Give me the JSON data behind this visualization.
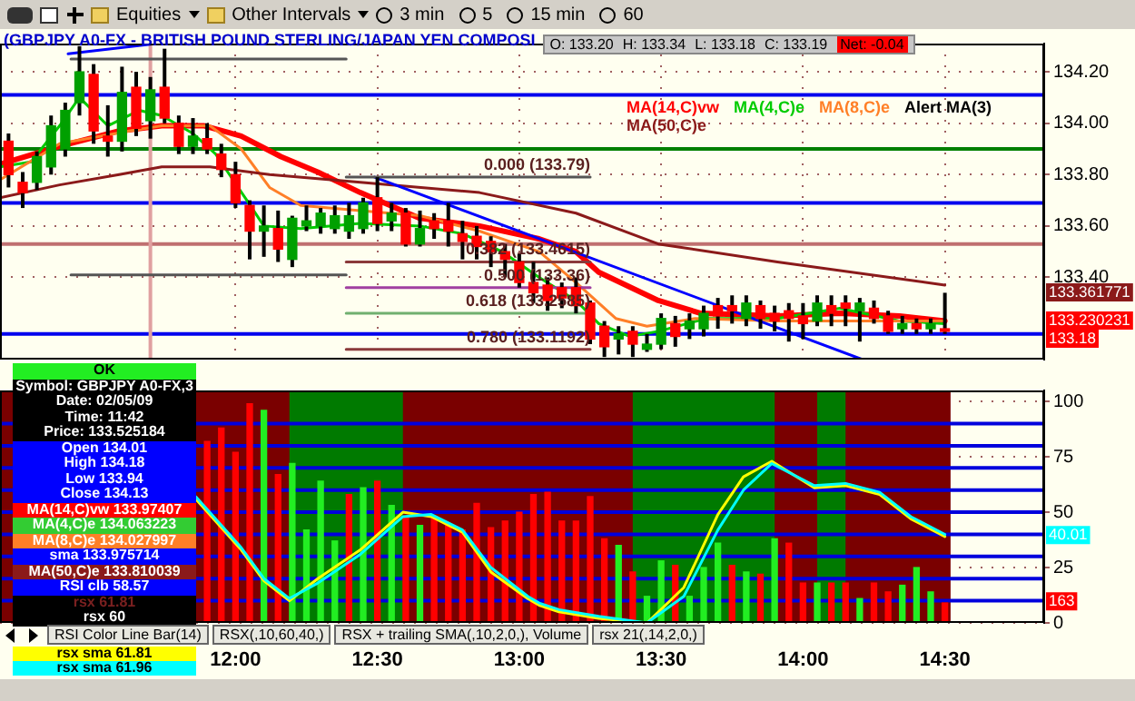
{
  "chart_data": [
    {
      "type": "candlestick",
      "title": "(GBPJPY A0-FX - BRITISH POUND STERLING/JAPAN YEN COMPOSI",
      "x": [
        11.2,
        11.25,
        11.3,
        11.35,
        11.4,
        11.45,
        11.5,
        11.55,
        11.6,
        11.65,
        11.7,
        11.75,
        11.8,
        11.85,
        11.9,
        11.95,
        12,
        12.05,
        12.1,
        12.15,
        12.2,
        12.25,
        12.3,
        12.35,
        12.4,
        12.45,
        12.5,
        12.55,
        12.6,
        12.65,
        12.7,
        12.75,
        12.8,
        12.85,
        12.9,
        12.95,
        13,
        13.05,
        13.1,
        13.15,
        13.2,
        13.25,
        13.3,
        13.35,
        13.4,
        13.45,
        13.5,
        13.55,
        13.6,
        13.65,
        13.7,
        13.75,
        13.8,
        13.85,
        13.9,
        13.95,
        14,
        14.05,
        14.1,
        14.15,
        14.2,
        14.25,
        14.3,
        14.35,
        14.4,
        14.45,
        14.5
      ],
      "ohlc": [
        [
          133.93,
          133.96,
          133.75,
          133.8
        ],
        [
          133.77,
          133.81,
          133.67,
          133.73
        ],
        [
          133.77,
          133.89,
          133.74,
          133.87
        ],
        [
          133.83,
          134.03,
          133.8,
          133.99
        ],
        [
          133.9,
          134.08,
          133.87,
          134.05
        ],
        [
          134.08,
          134.3,
          134.03,
          134.2
        ],
        [
          134.19,
          134.23,
          133.92,
          133.97
        ],
        [
          133.95,
          134.07,
          133.87,
          133.93
        ],
        [
          133.93,
          134.22,
          133.89,
          134.12
        ],
        [
          134.14,
          134.2,
          133.95,
          133.98
        ],
        [
          134.01,
          134.18,
          133.94,
          134.13
        ],
        [
          134.14,
          134.29,
          134.0,
          134.02
        ],
        [
          134.0,
          134.03,
          133.88,
          133.91
        ],
        [
          133.91,
          134.02,
          133.88,
          133.95
        ],
        [
          133.94,
          134.0,
          133.88,
          133.9
        ],
        [
          133.88,
          133.92,
          133.79,
          133.82
        ],
        [
          133.8,
          133.85,
          133.67,
          133.69
        ],
        [
          133.68,
          133.7,
          133.47,
          133.58
        ],
        [
          133.58,
          133.68,
          133.48,
          133.6
        ],
        [
          133.59,
          133.66,
          133.46,
          133.51
        ],
        [
          133.47,
          133.64,
          133.44,
          133.63
        ],
        [
          133.6,
          133.68,
          133.58,
          133.62
        ],
        [
          133.6,
          133.67,
          133.57,
          133.65
        ],
        [
          133.59,
          133.68,
          133.57,
          133.64
        ],
        [
          133.58,
          133.69,
          133.55,
          133.64
        ],
        [
          133.59,
          133.71,
          133.57,
          133.69
        ],
        [
          133.71,
          133.79,
          133.58,
          133.61
        ],
        [
          133.62,
          133.69,
          133.58,
          133.65
        ],
        [
          133.65,
          133.67,
          133.52,
          133.53
        ],
        [
          133.53,
          133.66,
          133.52,
          133.59
        ],
        [
          133.62,
          133.65,
          133.55,
          133.59
        ],
        [
          133.62,
          133.69,
          133.52,
          133.58
        ],
        [
          133.57,
          133.62,
          133.47,
          133.54
        ],
        [
          133.56,
          133.6,
          133.47,
          133.52
        ],
        [
          133.54,
          133.56,
          133.44,
          133.5
        ],
        [
          133.5,
          133.53,
          133.4,
          133.47
        ],
        [
          133.46,
          133.49,
          133.36,
          133.38
        ],
        [
          133.38,
          133.46,
          133.3,
          133.34
        ],
        [
          133.37,
          133.4,
          133.27,
          133.31
        ],
        [
          133.36,
          133.38,
          133.28,
          133.32
        ],
        [
          133.36,
          133.4,
          133.26,
          133.29
        ],
        [
          133.3,
          133.31,
          133.14,
          133.16
        ],
        [
          133.21,
          133.23,
          133.09,
          133.13
        ],
        [
          133.16,
          133.21,
          133.1,
          133.18
        ],
        [
          133.19,
          133.21,
          133.09,
          133.14
        ],
        [
          133.12,
          133.18,
          133.11,
          133.14
        ],
        [
          133.14,
          133.26,
          133.12,
          133.24
        ],
        [
          133.22,
          133.25,
          133.13,
          133.17
        ],
        [
          133.2,
          133.26,
          133.16,
          133.23
        ],
        [
          133.2,
          133.29,
          133.17,
          133.26
        ],
        [
          133.29,
          133.32,
          133.2,
          133.25
        ],
        [
          133.29,
          133.33,
          133.22,
          133.27
        ],
        [
          133.24,
          133.33,
          133.21,
          133.3
        ],
        [
          133.29,
          133.31,
          133.2,
          133.24
        ],
        [
          133.26,
          133.29,
          133.19,
          133.23
        ],
        [
          133.27,
          133.3,
          133.15,
          133.24
        ],
        [
          133.25,
          133.3,
          133.16,
          133.22
        ],
        [
          133.23,
          133.33,
          133.21,
          133.3
        ],
        [
          133.29,
          133.33,
          133.21,
          133.26
        ],
        [
          133.3,
          133.33,
          133.21,
          133.28
        ],
        [
          133.27,
          133.32,
          133.15,
          133.3
        ],
        [
          133.28,
          133.31,
          133.22,
          133.24
        ],
        [
          133.25,
          133.27,
          133.18,
          133.19
        ],
        [
          133.2,
          133.25,
          133.18,
          133.22
        ],
        [
          133.22,
          133.24,
          133.18,
          133.2
        ],
        [
          133.2,
          133.24,
          133.18,
          133.22
        ],
        [
          133.2,
          133.34,
          133.18,
          133.19
        ]
      ],
      "colors": [
        "#ff0000",
        "#ff0000",
        "#00a000",
        "#00a000",
        "#00a000",
        "#00a000",
        "#ff0000",
        "#ff0000",
        "#00a000",
        "#ff0000",
        "#00a000",
        "#ff0000",
        "#ff0000",
        "#00a000",
        "#ff0000",
        "#ff0000",
        "#ff0000",
        "#ff0000",
        "#00a000",
        "#ff0000",
        "#00a000",
        "#00a000",
        "#00a000",
        "#00a000",
        "#00a000",
        "#00a000",
        "#ff0000",
        "#00a000",
        "#ff0000",
        "#00a000",
        "#ff0000",
        "#ff0000",
        "#ff0000",
        "#ff0000",
        "#ff0000",
        "#ff0000",
        "#ff0000",
        "#ff0000",
        "#ff0000",
        "#ff0000",
        "#ff0000",
        "#ff0000",
        "#ff0000",
        "#00a000",
        "#ff0000",
        "#00a000",
        "#00a000",
        "#ff0000",
        "#00a000",
        "#00a000",
        "#ff0000",
        "#ff0000",
        "#00a000",
        "#ff0000",
        "#ff0000",
        "#ff0000",
        "#ff0000",
        "#00a000",
        "#ff0000",
        "#ff0000",
        "#00a000",
        "#ff0000",
        "#ff0000",
        "#00a000",
        "#ff0000",
        "#00a000",
        "#ff0000"
      ],
      "series": [
        {
          "type": "line",
          "name": "MA(14,C)vw",
          "color": "#ff0000",
          "x": [
            11.17,
            11.38,
            11.59,
            11.74,
            11.89,
            12.02,
            12.16,
            12.29,
            12.44,
            12.65,
            12.86,
            13.07,
            13.2,
            13.28,
            13.49,
            13.64,
            13.91,
            14.13,
            14.34,
            14.5
          ],
          "values": [
            133.84,
            133.91,
            133.97,
            133.99,
            133.99,
            133.95,
            133.87,
            133.81,
            133.73,
            133.63,
            133.6,
            133.55,
            133.5,
            133.42,
            133.31,
            133.26,
            133.25,
            133.26,
            133.25,
            133.23
          ]
        },
        {
          "type": "line",
          "name": "MA(4,C)e",
          "color": "#00cc00",
          "x": [
            11.17,
            11.28,
            11.38,
            11.45,
            11.55,
            11.66,
            11.74,
            11.85,
            11.93,
            12.04,
            12.1,
            12.23,
            12.44,
            12.65,
            12.8,
            12.94,
            13.07,
            13.2,
            13.28,
            13.39,
            13.49,
            13.66,
            13.91,
            14.13,
            14.34,
            14.5
          ],
          "values": [
            133.83,
            133.85,
            133.99,
            134.1,
            133.99,
            134.05,
            134.03,
            133.96,
            133.88,
            133.7,
            133.6,
            133.59,
            133.61,
            133.6,
            133.57,
            133.5,
            133.4,
            133.31,
            133.22,
            133.17,
            133.19,
            133.24,
            133.24,
            133.28,
            133.23,
            133.22
          ]
        },
        {
          "type": "line",
          "name": "MA(8,C)e",
          "color": "#ff7f27",
          "x": [
            11.17,
            11.38,
            11.625,
            11.74,
            11.91,
            12.02,
            12.12,
            12.23,
            12.44,
            12.65,
            12.86,
            13.07,
            13.2,
            13.34,
            13.45,
            13.62,
            13.91,
            14.5
          ],
          "values": [
            133.78,
            133.92,
            133.97,
            133.99,
            133.99,
            133.9,
            133.75,
            133.68,
            133.66,
            133.64,
            133.58,
            133.5,
            133.38,
            133.24,
            133.21,
            133.24,
            133.23,
            133.23
          ]
        },
        {
          "type": "line",
          "name": "MA(50,C)e",
          "color": "#8b1a1a",
          "x": [
            11.17,
            11.38,
            11.59,
            11.74,
            11.91,
            12.12,
            12.44,
            12.86,
            13.2,
            13.49,
            13.91,
            14.5
          ],
          "values": [
            133.71,
            133.76,
            133.8,
            133.83,
            133.83,
            133.8,
            133.77,
            133.73,
            133.65,
            133.53,
            133.46,
            133.37
          ]
        },
        {
          "type": "line",
          "color": "#0000ff",
          "x": [
            12.49,
            14.21
          ],
          "values": [
            133.79,
            133.08
          ]
        },
        {
          "type": "line",
          "color": "#0000ff",
          "x": [
            11.41,
            11.72
          ],
          "values": [
            134.27,
            134.31
          ]
        },
        {
          "type": "line",
          "color": "#555555",
          "x": [
            11.42,
            12.39
          ],
          "values": [
            134.25,
            134.25
          ]
        },
        {
          "type": "line",
          "color": "#555555",
          "x": [
            11.42,
            12.39
          ],
          "values": [
            133.41,
            133.41
          ]
        },
        {
          "type": "line",
          "color": "#555555",
          "x": [
            12.39,
            13.25
          ],
          "values": [
            133.79,
            133.79
          ]
        },
        {
          "type": "line",
          "color": "#8b3a3a",
          "x": [
            12.39,
            13.25
          ],
          "values": [
            133.46,
            133.46
          ]
        },
        {
          "type": "line",
          "color": "#a040a0",
          "x": [
            12.39,
            13.25
          ],
          "values": [
            133.36,
            133.36
          ]
        },
        {
          "type": "line",
          "color": "#70b070",
          "x": [
            12.39,
            13.25
          ],
          "values": [
            133.26,
            133.26
          ]
        },
        {
          "type": "line",
          "color": "#8b3a3a",
          "x": [
            12.39,
            13.25
          ],
          "values": [
            133.12,
            133.12
          ]
        }
      ],
      "ref_lines": [
        {
          "axis": "y",
          "value": 134.11,
          "color": "#0000ee"
        },
        {
          "axis": "y",
          "value": 133.9,
          "color": "#008000"
        },
        {
          "axis": "y",
          "value": 133.69,
          "color": "#0000ee"
        },
        {
          "axis": "y",
          "value": 133.53,
          "color": "#c07070"
        },
        {
          "axis": "y",
          "value": 133.18,
          "color": "#0000ee"
        },
        {
          "axis": "x",
          "value": 11.7,
          "color": "#e0a0a0"
        }
      ],
      "xlim": [
        11.17,
        14.85
      ],
      "ylim": [
        133.08,
        134.31
      ],
      "xticks": [
        12,
        12.5,
        13,
        13.5,
        14,
        14.5
      ],
      "yticks": [
        {
          "value": 133.4,
          "label": "133.40"
        },
        {
          "value": 133.6,
          "label": "133.60"
        },
        {
          "value": 133.8,
          "label": "133.80"
        },
        {
          "value": 134,
          "label": "134.00"
        },
        {
          "value": 134.2,
          "label": "134.20"
        }
      ],
      "tick_labels": "y",
      "grid": true,
      "legend": "top right",
      "marker": "none",
      "annotations": [
        "Equities",
        "Other Intervals",
        "3 min",
        "5",
        "15 min",
        "60",
        "O: 133.20",
        "H: 133.34",
        "L: 133.18",
        "C: 133.19",
        "Net: -0.04",
        "Alert MA(3)",
        "OK",
        "Symbol: GBPJPY A0-FX,3",
        "Date: 02/05/09",
        "Time: 11:42",
        "Price: 133.525184",
        "Open 134.01",
        "High 134.18",
        "Low 133.94",
        "Close 134.13",
        "MA(14,C)vw 133.97407",
        "MA(4,C)e 134.063223",
        "MA(8,C)e 134.027997",
        "sma 133.975714",
        "MA(50,C)e 133.810039",
        "RSI clb 58.57",
        "rsx 61.81",
        "rsx 60",
        "133.361771",
        "133.230231",
        "133.18",
        "0.000 (133.79)",
        "0.382 (133.4615)",
        "0.500 (133.36)",
        "0.618 (133.2585)",
        "0.780 (133.1192)"
      ]
    },
    {
      "type": "bar",
      "series": [
        {
          "type": "bar",
          "x": [
            11.9,
            11.95,
            12,
            12.05,
            12.1,
            12.15,
            12.2,
            12.25,
            12.3,
            12.35,
            12.4,
            12.45,
            12.5,
            12.55,
            12.6,
            12.65,
            12.7,
            12.75,
            12.8,
            12.85,
            12.9,
            12.95,
            13,
            13.05,
            13.1,
            13.15,
            13.2,
            13.25,
            13.3,
            13.35,
            13.4,
            13.45,
            13.5,
            13.55,
            13.6,
            13.65,
            13.7,
            13.75,
            13.8,
            13.85,
            13.9,
            13.95,
            14,
            14.05,
            14.1,
            14.15,
            14.2,
            14.25,
            14.3,
            14.35,
            14.4,
            14.45,
            14.5
          ],
          "values": [
            82,
            88,
            77,
            99,
            96,
            67,
            72,
            42,
            64,
            37,
            58,
            61,
            64,
            53,
            48,
            44,
            48,
            44,
            42,
            54,
            43,
            46,
            50,
            58,
            59,
            46,
            46,
            57,
            38,
            35,
            23,
            12,
            28,
            26,
            12,
            25,
            36,
            26,
            23,
            22,
            38,
            36,
            18,
            18,
            18,
            18,
            11,
            18,
            14,
            17,
            25,
            14,
            9
          ],
          "colors": [
            "#ff0000",
            "#ff0000",
            "#ff0000",
            "#ff0000",
            "#22ee22",
            "#ff0000",
            "#22ee22",
            "#22ee22",
            "#22ee22",
            "#22ee22",
            "#ff0000",
            "#22ee22",
            "#ff0000",
            "#22ee22",
            "#ff0000",
            "#22ee22",
            "#ff0000",
            "#ff0000",
            "#ff0000",
            "#ff0000",
            "#ff0000",
            "#ff0000",
            "#ff0000",
            "#ff0000",
            "#ff0000",
            "#ff0000",
            "#ff0000",
            "#ff0000",
            "#ff0000",
            "#22ee22",
            "#ff0000",
            "#22ee22",
            "#22ee22",
            "#ff0000",
            "#22ee22",
            "#22ee22",
            "#22ee22",
            "#ff0000",
            "#22ee22",
            "#ff0000",
            "#22ee22",
            "#ff0000",
            "#ff0000",
            "#22ee22",
            "#ff0000",
            "#ff0000",
            "#22ee22",
            "#ff0000",
            "#ff0000",
            "#22ee22",
            "#22ee22",
            "#22ee22",
            "#ff0000"
          ]
        },
        {
          "type": "line",
          "name": "rsx sma 61.81",
          "color": "#ffff00",
          "x": [
            11.86,
            12.02,
            12.1,
            12.19,
            12.29,
            12.44,
            12.59,
            12.69,
            12.8,
            12.9,
            13.03,
            13.07,
            13.14,
            13.28,
            13.45,
            13.58,
            13.7,
            13.79,
            13.89,
            14.04,
            14.15,
            14.27,
            14.38,
            14.5
          ],
          "values": [
            56,
            33,
            19,
            10,
            20,
            33,
            50,
            48,
            41,
            23,
            11,
            8,
            5,
            2,
            0,
            16,
            49,
            66,
            73,
            61,
            62,
            58,
            47,
            39
          ]
        },
        {
          "type": "line",
          "name": "rsx sma 61.96",
          "color": "#00ffff",
          "x": [
            11.86,
            12.02,
            12.1,
            12.19,
            12.29,
            12.44,
            12.59,
            12.69,
            12.8,
            12.9,
            13.03,
            13.07,
            13.14,
            13.28,
            13.45,
            13.58,
            13.7,
            13.79,
            13.89,
            14.04,
            14.15,
            14.27,
            14.38,
            14.5
          ],
          "values": [
            57,
            34,
            20,
            11,
            18,
            31,
            48,
            49,
            42,
            25,
            12,
            9,
            6,
            3,
            0,
            12,
            42,
            60,
            72,
            62,
            63,
            59,
            48,
            40
          ]
        }
      ],
      "bands": [
        {
          "axis": "x",
          "from": 11.17,
          "to": 14.52,
          "color": "#7a0000"
        },
        {
          "axis": "x",
          "from": 12.19,
          "to": 12.59,
          "color": "#007a00"
        },
        {
          "axis": "x",
          "from": 13.4,
          "to": 13.9,
          "color": "#007a00"
        },
        {
          "axis": "x",
          "from": 14.05,
          "to": 14.15,
          "color": "#007a00"
        }
      ],
      "ref_lines": [
        {
          "axis": "y",
          "value": 10,
          "color": "#0000dd"
        },
        {
          "axis": "y",
          "value": 20,
          "color": "#0000dd"
        },
        {
          "axis": "y",
          "value": 30,
          "color": "#0000dd"
        },
        {
          "axis": "y",
          "value": 40,
          "color": "#0000dd"
        },
        {
          "axis": "y",
          "value": 50,
          "color": "#0000dd"
        },
        {
          "axis": "y",
          "value": 60,
          "color": "#0000dd"
        },
        {
          "axis": "y",
          "value": 70,
          "color": "#0000dd"
        },
        {
          "axis": "y",
          "value": 80,
          "color": "#0000dd"
        },
        {
          "axis": "y",
          "value": 90,
          "color": "#0000dd"
        }
      ],
      "xlim": [
        11.17,
        14.85
      ],
      "ylim": [
        0,
        105
      ],
      "xticks": [
        {
          "value": 12,
          "label": "12:00"
        },
        {
          "value": 12.5,
          "label": "12:30"
        },
        {
          "value": 13,
          "label": "13:00"
        },
        {
          "value": 13.5,
          "label": "13:30"
        },
        {
          "value": 14,
          "label": "14:00"
        },
        {
          "value": 14.5,
          "label": "14:30"
        }
      ],
      "yticks": [
        0,
        25,
        50,
        75,
        100
      ],
      "grid": true,
      "legend": "bottom left",
      "marker": "none",
      "annotations": [
        "RSI Color Line Bar(14)",
        "RSX(,10,60,40,)",
        "RSX + trailing SMA(,10,2,0,), Volume",
        "rsx 21(,14,2,0,)",
        "40.01",
        "163"
      ]
    }
  ]
}
